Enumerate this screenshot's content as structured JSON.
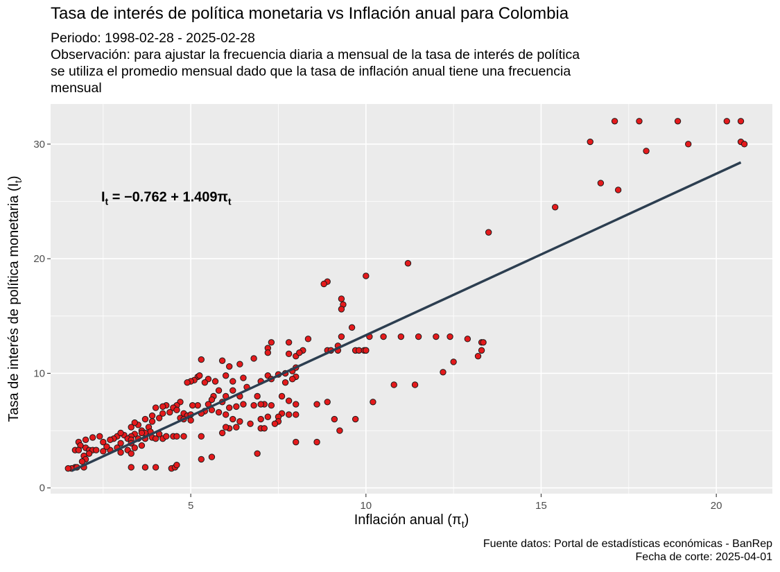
{
  "title": "Tasa de interés de política monetaria vs Inflación anual para Colombia",
  "subtitle_lines": [
    "Periodo: 1998-02-28 - 2025-02-28",
    "Observación: para ajustar la frecuencia diaria a mensual de la tasa de interés de política",
    "se utiliza el promedio mensual dado que la tasa de inflación anual tiene una frecuencia",
    "mensual"
  ],
  "caption_lines": [
    "Fuente datos: Portal de estadísticas económicas - BanRep",
    "Fecha de corte: 2025-04-01"
  ],
  "colors": {
    "point_fill": "#e41a1c",
    "point_stroke": "#1a1a1a",
    "line": "#2c3e50",
    "panel": "#ebebeb",
    "grid": "#ffffff"
  },
  "chart_data": {
    "type": "scatter",
    "xlabel": {
      "text": "Inflación anual (π",
      "sub": "t",
      "close": ")"
    },
    "ylabel": {
      "text": "Tasa de interés de política monetaria (I",
      "sub": "t",
      "close": ")"
    },
    "xlim": [
      1.0,
      21.6
    ],
    "ylim": [
      -0.5,
      33.5
    ],
    "xticks": [
      5,
      10,
      15,
      20
    ],
    "yticks": [
      0,
      10,
      20,
      30
    ],
    "grid": true,
    "legend": "none",
    "equation": {
      "lhs": "I",
      "lhs_sub": "t",
      "eq": " = ",
      "rhs": "−0.762 + 1.409π",
      "rhs_sub": "t",
      "at": [
        4.3,
        25
      ]
    },
    "regression": {
      "intercept": -0.762,
      "slope": 1.409,
      "x_range": [
        1.6,
        20.7
      ]
    },
    "points": [
      [
        20.7,
        32.0
      ],
      [
        20.3,
        32.0
      ],
      [
        18.9,
        32.0
      ],
      [
        17.8,
        32.0
      ],
      [
        17.1,
        32.0
      ],
      [
        16.4,
        30.2
      ],
      [
        20.7,
        30.2
      ],
      [
        20.8,
        30.0
      ],
      [
        19.2,
        30.0
      ],
      [
        18.0,
        29.4
      ],
      [
        16.7,
        26.6
      ],
      [
        17.2,
        26.0
      ],
      [
        15.4,
        24.5
      ],
      [
        13.5,
        22.3
      ],
      [
        11.2,
        19.6
      ],
      [
        10.0,
        18.5
      ],
      [
        8.9,
        18.0
      ],
      [
        8.8,
        17.8
      ],
      [
        9.3,
        16.5
      ],
      [
        9.35,
        16.0
      ],
      [
        9.3,
        15.6
      ],
      [
        9.6,
        14.0
      ],
      [
        9.3,
        13.2
      ],
      [
        10.1,
        13.2
      ],
      [
        10.5,
        13.2
      ],
      [
        11.0,
        13.2
      ],
      [
        11.5,
        13.2
      ],
      [
        12.0,
        13.2
      ],
      [
        12.4,
        13.2
      ],
      [
        12.9,
        13.0
      ],
      [
        13.3,
        12.7
      ],
      [
        13.35,
        12.7
      ],
      [
        8.35,
        13.0
      ],
      [
        9.2,
        12.4
      ],
      [
        7.8,
        12.7
      ],
      [
        7.3,
        12.7
      ],
      [
        7.2,
        12.2
      ],
      [
        8.2,
        12.0
      ],
      [
        8.9,
        12.0
      ],
      [
        9.0,
        12.0
      ],
      [
        9.2,
        12.0
      ],
      [
        9.7,
        12.0
      ],
      [
        9.8,
        12.0
      ],
      [
        9.95,
        12.0
      ],
      [
        10.0,
        12.0
      ],
      [
        13.3,
        12.0
      ],
      [
        13.2,
        11.5
      ],
      [
        7.8,
        11.7
      ],
      [
        8.0,
        11.5
      ],
      [
        8.1,
        11.8
      ],
      [
        7.2,
        11.8
      ],
      [
        6.8,
        11.3
      ],
      [
        5.9,
        11.1
      ],
      [
        5.3,
        11.2
      ],
      [
        6.1,
        10.6
      ],
      [
        6.4,
        10.8
      ],
      [
        12.5,
        11.0
      ],
      [
        12.2,
        10.1
      ],
      [
        7.9,
        10.2
      ],
      [
        8.0,
        10.5
      ],
      [
        7.7,
        10.0
      ],
      [
        7.5,
        9.9
      ],
      [
        7.2,
        9.8
      ],
      [
        7.3,
        9.5
      ],
      [
        7.0,
        9.3
      ],
      [
        8.0,
        9.7
      ],
      [
        7.9,
        9.5
      ],
      [
        7.7,
        9.2
      ],
      [
        6.0,
        9.8
      ],
      [
        5.7,
        9.3
      ],
      [
        5.2,
        9.7
      ],
      [
        5.25,
        9.8
      ],
      [
        5.5,
        9.5
      ],
      [
        5.4,
        9.2
      ],
      [
        6.2,
        9.3
      ],
      [
        6.5,
        9.6
      ],
      [
        5.1,
        9.4
      ],
      [
        5.0,
        9.3
      ],
      [
        4.9,
        9.2
      ],
      [
        10.8,
        9.0
      ],
      [
        11.4,
        9.0
      ],
      [
        6.6,
        8.8
      ],
      [
        6.2,
        8.5
      ],
      [
        5.8,
        8.5
      ],
      [
        5.65,
        8.0
      ],
      [
        6.0,
        8.0
      ],
      [
        5.6,
        7.7
      ],
      [
        5.9,
        7.5
      ],
      [
        5.5,
        7.3
      ],
      [
        5.2,
        7.2
      ],
      [
        5.05,
        7.2
      ],
      [
        6.5,
        7.3
      ],
      [
        6.3,
        7.1
      ],
      [
        6.1,
        7.0
      ],
      [
        6.8,
        7.2
      ],
      [
        7.6,
        8.0
      ],
      [
        7.8,
        7.6
      ],
      [
        7.3,
        7.2
      ],
      [
        7.1,
        7.3
      ],
      [
        7.0,
        7.3
      ],
      [
        6.9,
        8.0
      ],
      [
        6.4,
        8.0
      ],
      [
        8.0,
        7.3
      ],
      [
        8.6,
        7.3
      ],
      [
        8.9,
        7.5
      ],
      [
        10.2,
        7.5
      ],
      [
        4.7,
        7.5
      ],
      [
        4.6,
        7.2
      ],
      [
        4.5,
        7.0
      ],
      [
        4.3,
        7.2
      ],
      [
        4.2,
        7.1
      ],
      [
        4.0,
        7.0
      ],
      [
        4.4,
        6.6
      ],
      [
        4.2,
        6.5
      ],
      [
        4.6,
        6.8
      ],
      [
        4.8,
        6.5
      ],
      [
        4.9,
        6.3
      ],
      [
        5.0,
        6.4
      ],
      [
        4.7,
        6.1
      ],
      [
        5.6,
        6.8
      ],
      [
        5.4,
        6.7
      ],
      [
        5.3,
        6.5
      ],
      [
        5.8,
        6.6
      ],
      [
        6.0,
        6.4
      ],
      [
        6.2,
        6.0
      ],
      [
        6.4,
        5.8
      ],
      [
        7.6,
        6.5
      ],
      [
        7.8,
        6.4
      ],
      [
        7.5,
        6.2
      ],
      [
        7.2,
        6.2
      ],
      [
        7.0,
        6.0
      ],
      [
        8.0,
        6.4
      ],
      [
        9.1,
        6.0
      ],
      [
        9.7,
        6.0
      ],
      [
        7.5,
        5.8
      ],
      [
        7.4,
        5.6
      ],
      [
        6.7,
        5.6
      ],
      [
        6.3,
        5.3
      ],
      [
        6.1,
        5.2
      ],
      [
        6.0,
        5.3
      ],
      [
        7.0,
        5.2
      ],
      [
        7.1,
        5.2
      ],
      [
        9.25,
        5.0
      ],
      [
        5.9,
        4.8
      ],
      [
        5.3,
        4.5
      ],
      [
        5.0,
        5.9
      ],
      [
        4.8,
        6.0
      ],
      [
        4.1,
        6.1
      ],
      [
        3.9,
        6.3
      ],
      [
        3.7,
        6.0
      ],
      [
        3.9,
        5.8
      ],
      [
        3.5,
        5.5
      ],
      [
        3.3,
        5.3
      ],
      [
        3.4,
        5.7
      ],
      [
        3.6,
        5.0
      ],
      [
        3.8,
        5.3
      ],
      [
        3.85,
        4.9
      ],
      [
        3.7,
        4.8
      ],
      [
        3.6,
        4.8
      ],
      [
        3.4,
        4.7
      ],
      [
        3.3,
        4.5
      ],
      [
        3.1,
        4.6
      ],
      [
        2.9,
        4.5
      ],
      [
        3.0,
        4.8
      ],
      [
        2.8,
        4.3
      ],
      [
        2.7,
        4.2
      ],
      [
        2.5,
        4.0
      ],
      [
        2.4,
        4.5
      ],
      [
        2.2,
        4.4
      ],
      [
        2.0,
        4.2
      ],
      [
        1.8,
        4.0
      ],
      [
        1.85,
        3.7
      ],
      [
        2.0,
        3.5
      ],
      [
        2.1,
        3.3
      ],
      [
        2.2,
        3.3
      ],
      [
        1.7,
        3.3
      ],
      [
        1.8,
        3.3
      ],
      [
        2.5,
        3.2
      ],
      [
        2.7,
        3.3
      ],
      [
        2.9,
        3.5
      ],
      [
        3.0,
        3.9
      ],
      [
        3.2,
        4.3
      ],
      [
        3.3,
        4.2
      ],
      [
        3.5,
        4.3
      ],
      [
        3.7,
        4.3
      ],
      [
        3.9,
        4.4
      ],
      [
        4.0,
        4.3
      ],
      [
        4.2,
        4.3
      ],
      [
        4.1,
        4.7
      ],
      [
        4.3,
        4.5
      ],
      [
        4.5,
        4.5
      ],
      [
        4.6,
        4.5
      ],
      [
        4.8,
        4.5
      ],
      [
        3.3,
        3.9
      ],
      [
        3.4,
        3.5
      ],
      [
        3.2,
        3.3
      ],
      [
        3.0,
        3.1
      ],
      [
        2.6,
        3.6
      ],
      [
        2.3,
        3.3
      ],
      [
        2.1,
        3.0
      ],
      [
        1.95,
        2.8
      ],
      [
        2.0,
        2.5
      ],
      [
        1.9,
        2.3
      ],
      [
        1.7,
        1.8
      ],
      [
        1.6,
        1.7
      ],
      [
        1.5,
        1.7
      ],
      [
        1.75,
        1.8
      ],
      [
        1.95,
        1.8
      ],
      [
        3.3,
        3.0
      ],
      [
        3.6,
        3.7
      ],
      [
        3.3,
        1.8
      ],
      [
        3.7,
        1.8
      ],
      [
        4.0,
        1.8
      ],
      [
        4.45,
        1.7
      ],
      [
        4.55,
        1.8
      ],
      [
        4.6,
        2.0
      ],
      [
        5.3,
        2.5
      ],
      [
        5.6,
        2.7
      ],
      [
        6.9,
        3.0
      ],
      [
        8.0,
        4.0
      ],
      [
        8.6,
        4.0
      ],
      [
        10.0,
        12.0
      ]
    ]
  }
}
